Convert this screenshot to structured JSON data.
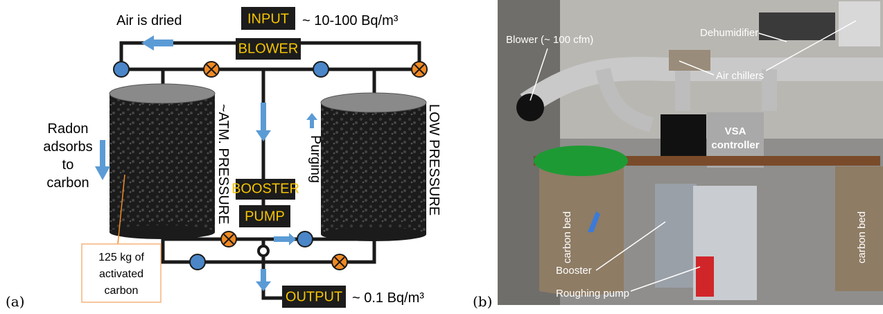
{
  "panel_a": {
    "label": "(a)",
    "air_dried": "Air is dried",
    "input": "INPUT",
    "input_conc": "~ 10-100 Bq/m³",
    "blower": "BLOWER",
    "left_pressure": "~ATM. PRESSURE",
    "right_pressure": "LOW PRESSURE",
    "radon": [
      "Radon",
      "adsorbs",
      "to",
      "carbon"
    ],
    "purging": "Purging",
    "booster": "BOOSTER",
    "pump": "PUMP",
    "carbon_note": [
      "125 kg of",
      "activated",
      "carbon"
    ],
    "output": "OUTPUT",
    "output_conc": "~ 0.1 Bq/m³"
  },
  "panel_b": {
    "label": "(b)",
    "blower": "Blower (~ 100 cfm)",
    "dehumidifier": "Dehumidifier",
    "air_chillers": "Air chillers",
    "vsa": [
      "VSA",
      "controller"
    ],
    "carbon_bed_left": "carbon bed",
    "carbon_bed_right": "carbon bed",
    "booster": "Booster",
    "roughing_pump": "Roughing pump"
  }
}
